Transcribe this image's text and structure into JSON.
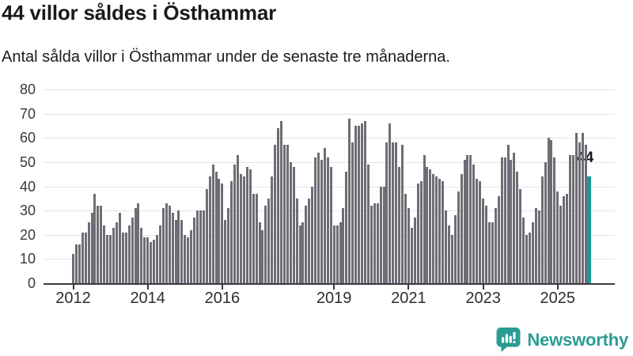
{
  "header": {
    "title": "44 villor såldes i Östhammar",
    "subtitle": "Antal sålda villor i Östhammar under de senaste tre månaderna."
  },
  "chart_data": {
    "type": "bar",
    "title": "44 villor såldes i Östhammar",
    "subtitle": "Antal sålda villor i Östhammar under de senaste tre månaderna.",
    "x_unit": "month",
    "x_start": "2012-01",
    "x_end": "2025-11",
    "ylim": [
      0,
      80
    ],
    "yticks": [
      0,
      10,
      20,
      30,
      40,
      50,
      60,
      70,
      80
    ],
    "grid": true,
    "legend": false,
    "bar_color": "#6f6c75",
    "values": [
      12,
      16,
      16,
      21,
      21,
      25,
      29,
      37,
      32,
      32,
      24,
      20,
      20,
      23,
      25,
      29,
      21,
      21,
      24,
      27,
      31,
      33,
      23,
      19,
      19,
      17,
      18,
      20,
      24,
      31,
      33,
      32,
      29,
      26,
      30,
      26,
      20,
      19,
      22,
      27,
      30,
      30,
      30,
      39,
      44,
      49,
      46,
      43,
      41,
      26,
      31,
      42,
      49,
      53,
      45,
      44,
      48,
      47,
      37,
      37,
      25,
      22,
      32,
      35,
      44,
      57,
      64,
      67,
      57,
      57,
      50,
      48,
      35,
      24,
      25,
      32,
      35,
      40,
      52,
      54,
      51,
      56,
      52,
      48,
      24,
      24,
      25,
      31,
      46,
      68,
      58,
      65,
      65,
      66,
      67,
      49,
      32,
      33,
      33,
      40,
      40,
      58,
      66,
      58,
      58,
      48,
      57,
      37,
      31,
      23,
      27,
      41,
      42,
      53,
      48,
      47,
      45,
      44,
      43,
      42,
      30,
      24,
      20,
      28,
      38,
      45,
      51,
      53,
      53,
      49,
      43,
      42,
      35,
      32,
      25,
      25,
      31,
      36,
      52,
      52,
      57,
      51,
      54,
      46,
      39,
      27,
      20,
      21,
      25,
      31,
      30,
      44,
      50,
      60,
      59,
      52,
      38,
      32,
      36,
      37,
      53,
      53,
      62,
      58,
      62,
      57,
      44
    ],
    "xticks": [
      {
        "label": "2012",
        "month_index": 0
      },
      {
        "label": "2014",
        "month_index": 24
      },
      {
        "label": "2016",
        "month_index": 48
      },
      {
        "label": "2019",
        "month_index": 84
      },
      {
        "label": "2021",
        "month_index": 108
      },
      {
        "label": "2023",
        "month_index": 132
      },
      {
        "label": "2025",
        "month_index": 156
      }
    ],
    "highlight": {
      "index": 166,
      "value": 44,
      "label": "44",
      "color": "#189a93"
    }
  },
  "footer": {
    "brand": "Newsworthy",
    "brand_color": "#2b9c93",
    "logo_icon": "newsworthy-speech-bubble-bar-chart-icon"
  }
}
